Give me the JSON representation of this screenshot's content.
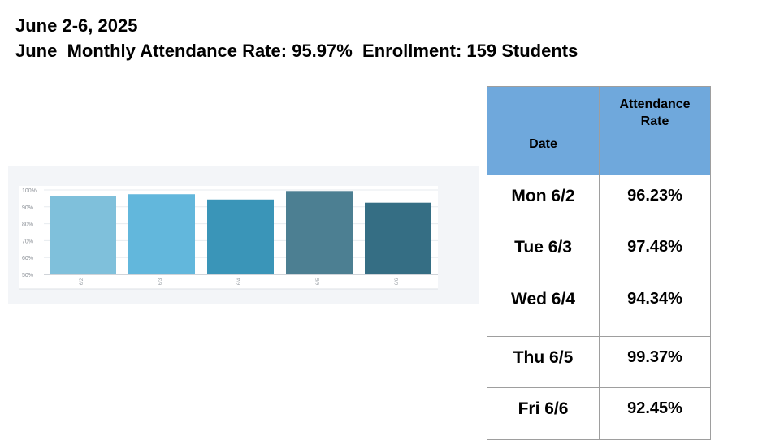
{
  "header": {
    "line1": "June 2-6, 2025",
    "line2": "June  Monthly Attendance Rate: 95.97%  Enrollment: 159 Students"
  },
  "chart_data": {
    "type": "bar",
    "categories": [
      "6/2",
      "6/3",
      "6/4",
      "6/5",
      "6/6"
    ],
    "values": [
      96.23,
      97.48,
      94.34,
      99.37,
      92.45
    ],
    "yticks": [
      "100%",
      "90%",
      "80%",
      "70%",
      "60%",
      "50%"
    ],
    "ylim": [
      50,
      100
    ],
    "grid": true,
    "colors": [
      "#7fc0db",
      "#62b7dc",
      "#3a95b8",
      "#4c7f92",
      "#356e84"
    ]
  },
  "table": {
    "headers": [
      "Date",
      "Attendance Rate"
    ],
    "rows": [
      {
        "date": "Mon 6/2",
        "rate": "96.23%"
      },
      {
        "date": "Tue 6/3",
        "rate": "97.48%"
      },
      {
        "date": "Wed 6/4",
        "rate": "94.34%"
      },
      {
        "date": "Thu 6/5",
        "rate": "99.37%"
      },
      {
        "date": "Fri 6/6",
        "rate": "92.45%"
      }
    ]
  }
}
